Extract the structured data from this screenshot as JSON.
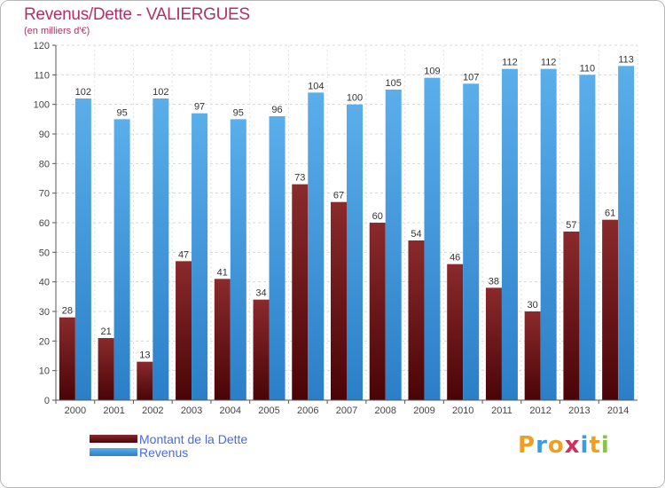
{
  "header": {
    "title": "Revenus/Dette - VALIERGUES",
    "subtitle": "(en milliers d'€)"
  },
  "chart_data": {
    "type": "bar",
    "categories": [
      "2000",
      "2001",
      "2002",
      "2003",
      "2004",
      "2005",
      "2006",
      "2007",
      "2008",
      "2009",
      "2010",
      "2011",
      "2012",
      "2013",
      "2014"
    ],
    "series": [
      {
        "name": "Montant de la Dette",
        "color": "#7a1518",
        "values": [
          28,
          21,
          13,
          47,
          41,
          34,
          73,
          67,
          60,
          54,
          46,
          38,
          30,
          57,
          61
        ]
      },
      {
        "name": "Revenus",
        "color": "#3d9be0",
        "values": [
          102,
          95,
          102,
          97,
          95,
          96,
          104,
          100,
          105,
          109,
          107,
          112,
          112,
          110,
          113
        ]
      }
    ],
    "ylim": [
      0,
      120
    ],
    "yticks": [
      0,
      10,
      20,
      30,
      40,
      50,
      60,
      70,
      80,
      90,
      100,
      110,
      120
    ],
    "grid": true,
    "legend": "bottom-left"
  },
  "legend": {
    "items": [
      {
        "label": "Montant de la Dette",
        "color": "#6b0f12"
      },
      {
        "label": "Revenus",
        "color": "#3d9be0"
      }
    ]
  },
  "logo": {
    "letters": [
      "P",
      "r",
      "o",
      "x",
      "i",
      "t",
      "i"
    ],
    "colors": [
      "#f0a020",
      "#3d9be0",
      "#f0a020",
      "#d03060",
      "#3d9be0",
      "#f0a020",
      "#8bc34a"
    ]
  }
}
